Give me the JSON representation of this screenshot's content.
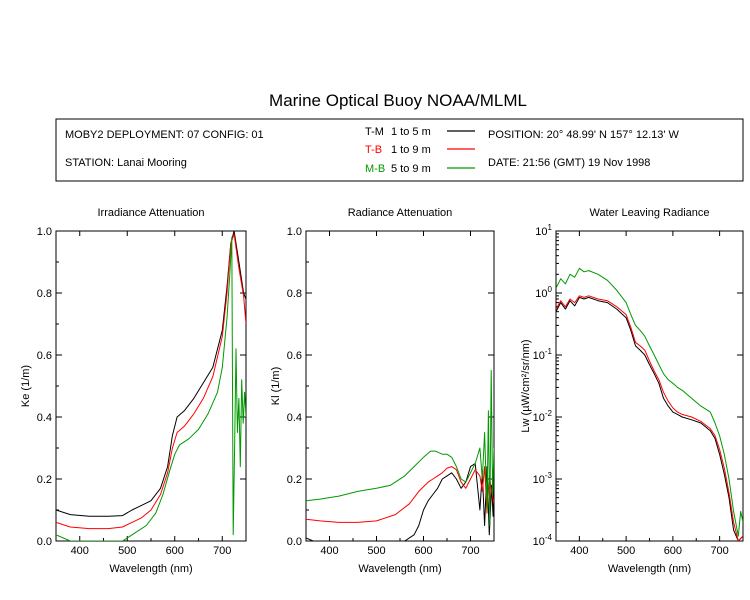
{
  "figure": {
    "title": "Marine Optical Buoy NOAA/MLML",
    "info": {
      "deployment": "MOBY2 DEPLOYMENT: 07 CONFIG: 01",
      "station": "STATION: Lanai Mooring",
      "position": "POSITION: 20° 48.99' N   157° 12.13' W",
      "date": "DATE: 21:56 (GMT) 19 Nov 1998"
    },
    "legend": [
      {
        "code": "T-M",
        "range": "1 to 5  m",
        "color": "#000000"
      },
      {
        "code": "T-B",
        "range": "1 to 9  m",
        "color": "#ff0000"
      },
      {
        "code": "M-B",
        "range": "5 to 9  m",
        "color": "#009900"
      }
    ]
  },
  "chart_data": [
    {
      "type": "line",
      "title": "Irradiance Attenuation",
      "xlabel": "Wavelength (nm)",
      "ylabel": "Ke  (1/m)",
      "xlim": [
        350,
        750
      ],
      "ylim": [
        0,
        1
      ],
      "xticks": [
        "400",
        "500",
        "600",
        "700"
      ],
      "yticks": [
        "0.0",
        "0.2",
        "0.4",
        "0.6",
        "0.8",
        "1.0"
      ],
      "series": [
        {
          "name": "T-M",
          "color": "#000000",
          "x": [
            350,
            380,
            420,
            460,
            490,
            510,
            530,
            550,
            570,
            585,
            595,
            605,
            620,
            640,
            660,
            680,
            700,
            710,
            718,
            725,
            735,
            745,
            750
          ],
          "y": [
            0.1,
            0.085,
            0.08,
            0.08,
            0.082,
            0.1,
            0.115,
            0.13,
            0.17,
            0.24,
            0.34,
            0.4,
            0.42,
            0.46,
            0.51,
            0.56,
            0.68,
            0.82,
            0.96,
            1.0,
            0.9,
            0.8,
            0.78
          ]
        },
        {
          "name": "T-B",
          "color": "#ff0000",
          "x": [
            350,
            380,
            420,
            460,
            490,
            510,
            530,
            550,
            570,
            585,
            595,
            605,
            620,
            640,
            660,
            680,
            700,
            710,
            718,
            725,
            735,
            745,
            750
          ],
          "y": [
            0.06,
            0.045,
            0.04,
            0.04,
            0.045,
            0.06,
            0.075,
            0.1,
            0.15,
            0.22,
            0.3,
            0.35,
            0.37,
            0.41,
            0.46,
            0.53,
            0.66,
            0.8,
            0.96,
            0.99,
            0.88,
            0.79,
            0.7
          ]
        },
        {
          "name": "M-B",
          "color": "#009900",
          "x": [
            350,
            380,
            420,
            460,
            490,
            500,
            520,
            540,
            560,
            575,
            590,
            600,
            610,
            630,
            650,
            670,
            690,
            700,
            710,
            716,
            720,
            723,
            726,
            729,
            732,
            735,
            738,
            741,
            744,
            747,
            750
          ],
          "y": [
            0.02,
            0.0,
            0.0,
            0.0,
            0.0,
            0.01,
            0.03,
            0.05,
            0.09,
            0.15,
            0.23,
            0.28,
            0.31,
            0.33,
            0.36,
            0.41,
            0.48,
            0.56,
            0.72,
            0.86,
            0.98,
            0.02,
            0.3,
            0.62,
            0.35,
            0.46,
            0.24,
            0.52,
            0.38,
            0.48,
            0.4
          ]
        }
      ]
    },
    {
      "type": "line",
      "title": "Radiance Attenuation",
      "xlabel": "Wavelength (nm)",
      "ylabel": "Kl  (1/m)",
      "xlim": [
        350,
        750
      ],
      "ylim": [
        0,
        1
      ],
      "xticks": [
        "400",
        "500",
        "600",
        "700"
      ],
      "yticks": [
        "0.0",
        "0.2",
        "0.4",
        "0.6",
        "0.8",
        "1.0"
      ],
      "series": [
        {
          "name": "T-M",
          "color": "#000000",
          "x": [
            350,
            365,
            380,
            400,
            500,
            560,
            580,
            590,
            600,
            610,
            620,
            630,
            640,
            650,
            660,
            670,
            680,
            690,
            700,
            710,
            720,
            725,
            730,
            735,
            740,
            745,
            748,
            750
          ],
          "y": [
            0.01,
            0.0,
            0.0,
            0.0,
            0.0,
            0.0,
            0.02,
            0.05,
            0.1,
            0.13,
            0.15,
            0.17,
            0.2,
            0.21,
            0.22,
            0.2,
            0.17,
            0.19,
            0.24,
            0.25,
            0.1,
            0.22,
            0.05,
            0.24,
            0.02,
            0.18,
            0.08,
            0.22
          ]
        },
        {
          "name": "T-B",
          "color": "#ff0000",
          "x": [
            350,
            380,
            420,
            460,
            500,
            540,
            570,
            590,
            610,
            620,
            630,
            640,
            650,
            660,
            670,
            680,
            690,
            700,
            710,
            720,
            725,
            730,
            735,
            740,
            745,
            750
          ],
          "y": [
            0.07,
            0.065,
            0.06,
            0.06,
            0.065,
            0.085,
            0.12,
            0.16,
            0.19,
            0.2,
            0.21,
            0.22,
            0.235,
            0.24,
            0.23,
            0.19,
            0.17,
            0.2,
            0.23,
            0.21,
            0.16,
            0.24,
            0.09,
            0.21,
            0.16,
            0.12
          ]
        },
        {
          "name": "M-B",
          "color": "#009900",
          "x": [
            350,
            380,
            420,
            460,
            500,
            530,
            560,
            580,
            600,
            615,
            625,
            640,
            650,
            660,
            670,
            680,
            690,
            700,
            710,
            720,
            725,
            730,
            735,
            738,
            741,
            744,
            747,
            750
          ],
          "y": [
            0.13,
            0.135,
            0.145,
            0.16,
            0.17,
            0.18,
            0.21,
            0.24,
            0.27,
            0.29,
            0.29,
            0.28,
            0.28,
            0.27,
            0.24,
            0.2,
            0.19,
            0.22,
            0.25,
            0.3,
            0.2,
            0.35,
            0.1,
            0.42,
            0.05,
            0.55,
            0.15,
            0.3
          ]
        }
      ]
    },
    {
      "type": "line",
      "title": "Water Leaving Radiance",
      "xlabel": "Wavelength (nm)",
      "ylabel": "Lw  (µW/cm²/sr/nm)",
      "scale": "log",
      "xlim": [
        350,
        750
      ],
      "ylim": [
        0.0001,
        10
      ],
      "xticks": [
        "400",
        "500",
        "600",
        "700"
      ],
      "yticks": [
        "10⁻⁴",
        "10⁻³",
        "10⁻²",
        "10⁻¹",
        "10⁰",
        "10¹"
      ],
      "series": [
        {
          "name": "T-M",
          "color": "#000000",
          "x": [
            350,
            360,
            370,
            380,
            390,
            400,
            410,
            420,
            440,
            460,
            480,
            500,
            510,
            520,
            530,
            540,
            550,
            560,
            570,
            580,
            590,
            600,
            610,
            620,
            640,
            660,
            680,
            690,
            700,
            710,
            720,
            730,
            740,
            750
          ],
          "y": [
            0.5,
            0.7,
            0.55,
            0.75,
            0.62,
            0.85,
            0.8,
            0.85,
            0.75,
            0.7,
            0.55,
            0.4,
            0.25,
            0.14,
            0.12,
            0.1,
            0.07,
            0.05,
            0.035,
            0.02,
            0.015,
            0.012,
            0.011,
            0.01,
            0.009,
            0.008,
            0.006,
            0.0045,
            0.0025,
            0.0012,
            0.0005,
            0.00015,
            0.0001,
            0.00012
          ]
        },
        {
          "name": "T-B",
          "color": "#ff0000",
          "x": [
            350,
            360,
            370,
            380,
            390,
            400,
            410,
            420,
            440,
            460,
            480,
            500,
            510,
            520,
            530,
            540,
            550,
            560,
            570,
            580,
            590,
            600,
            610,
            620,
            640,
            660,
            680,
            690,
            700,
            710,
            720,
            730,
            740,
            750
          ],
          "y": [
            0.55,
            0.75,
            0.6,
            0.8,
            0.7,
            0.9,
            0.85,
            0.9,
            0.8,
            0.75,
            0.6,
            0.45,
            0.28,
            0.16,
            0.14,
            0.12,
            0.08,
            0.055,
            0.04,
            0.025,
            0.018,
            0.014,
            0.012,
            0.011,
            0.01,
            0.0085,
            0.0065,
            0.005,
            0.003,
            0.0015,
            0.0006,
            0.0002,
            0.0001,
            0.00012
          ]
        },
        {
          "name": "M-B",
          "color": "#009900",
          "x": [
            350,
            360,
            370,
            380,
            390,
            400,
            410,
            420,
            440,
            460,
            480,
            500,
            510,
            520,
            530,
            540,
            550,
            560,
            570,
            580,
            590,
            600,
            610,
            620,
            640,
            660,
            680,
            690,
            700,
            710,
            720,
            730,
            740,
            745,
            750
          ],
          "y": [
            1.2,
            1.7,
            1.4,
            2.0,
            1.8,
            2.5,
            2.2,
            2.3,
            2.0,
            1.6,
            1.1,
            0.7,
            0.45,
            0.3,
            0.25,
            0.2,
            0.14,
            0.1,
            0.07,
            0.05,
            0.04,
            0.035,
            0.03,
            0.027,
            0.02,
            0.015,
            0.012,
            0.008,
            0.005,
            0.0025,
            0.001,
            0.0003,
            0.00012,
            0.0003,
            0.0002
          ]
        }
      ]
    }
  ]
}
